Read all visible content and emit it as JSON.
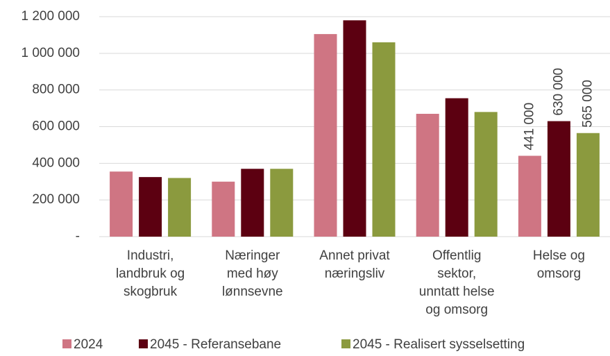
{
  "chart_data": {
    "type": "bar",
    "categories": [
      "Industri,\nlandbruk og\nskogbruk",
      "Næringer\nmed høy\nlønnsevne",
      "Annet privat\nnæringsliv",
      "Offentlig\nsektor,\nunntatt helse\nog omsorg",
      "Helse og\nomsorg"
    ],
    "series": [
      {
        "name": "2024",
        "color": "#cf7583",
        "values": [
          355000,
          300000,
          1105000,
          670000,
          441000
        ],
        "value_labels": [
          null,
          null,
          null,
          null,
          "441 000"
        ]
      },
      {
        "name": "2045 - Referansebane",
        "color": "#5c0011",
        "values": [
          325000,
          370000,
          1180000,
          755000,
          630000
        ],
        "value_labels": [
          null,
          null,
          null,
          null,
          "630 000"
        ]
      },
      {
        "name": "2045 - Realisert sysselsetting",
        "color": "#8b9a3e",
        "values": [
          320000,
          370000,
          1060000,
          680000,
          565000
        ],
        "value_labels": [
          null,
          null,
          null,
          null,
          "565 000"
        ]
      }
    ],
    "ylim": [
      0,
      1200000
    ],
    "yticks": [
      {
        "value": 0,
        "label": "-"
      },
      {
        "value": 200000,
        "label": "200 000"
      },
      {
        "value": 400000,
        "label": "400 000"
      },
      {
        "value": 600000,
        "label": "600 000"
      },
      {
        "value": 800000,
        "label": "800 000"
      },
      {
        "value": 1000000,
        "label": "1 000 000"
      },
      {
        "value": 1200000,
        "label": "1 200 000"
      }
    ],
    "grid": true,
    "legend": "bottom"
  }
}
